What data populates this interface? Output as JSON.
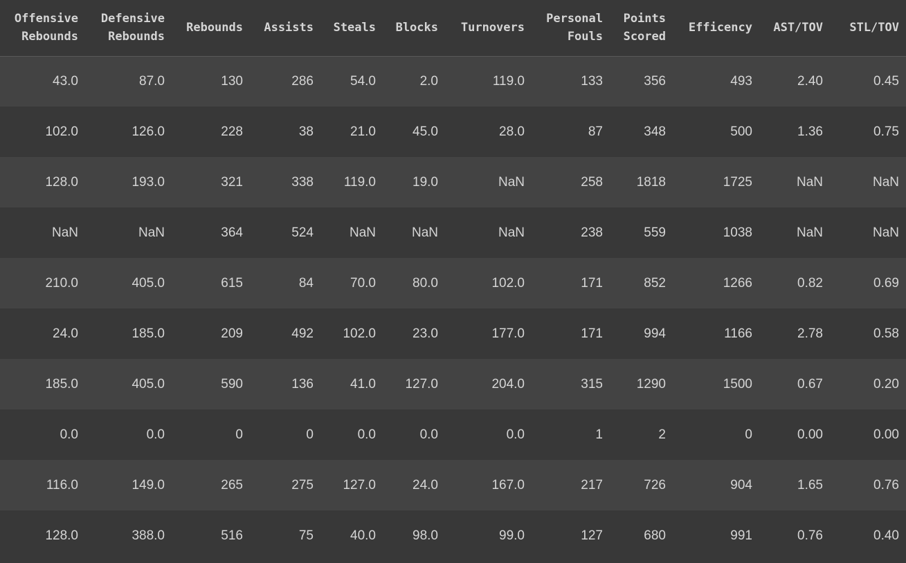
{
  "table": {
    "headers": [
      "Offensive\nRebounds",
      "Defensive\nRebounds",
      "Rebounds",
      "Assists",
      "Steals",
      "Blocks",
      "Turnovers",
      "Personal\nFouls",
      "Points\nScored",
      "Efficency",
      "AST/TOV",
      "STL/TOV"
    ],
    "rows": [
      [
        "43.0",
        "87.0",
        "130",
        "286",
        "54.0",
        "2.0",
        "119.0",
        "133",
        "356",
        "493",
        "2.40",
        "0.45"
      ],
      [
        "102.0",
        "126.0",
        "228",
        "38",
        "21.0",
        "45.0",
        "28.0",
        "87",
        "348",
        "500",
        "1.36",
        "0.75"
      ],
      [
        "128.0",
        "193.0",
        "321",
        "338",
        "119.0",
        "19.0",
        "NaN",
        "258",
        "1818",
        "1725",
        "NaN",
        "NaN"
      ],
      [
        "NaN",
        "NaN",
        "364",
        "524",
        "NaN",
        "NaN",
        "NaN",
        "238",
        "559",
        "1038",
        "NaN",
        "NaN"
      ],
      [
        "210.0",
        "405.0",
        "615",
        "84",
        "70.0",
        "80.0",
        "102.0",
        "171",
        "852",
        "1266",
        "0.82",
        "0.69"
      ],
      [
        "24.0",
        "185.0",
        "209",
        "492",
        "102.0",
        "23.0",
        "177.0",
        "171",
        "994",
        "1166",
        "2.78",
        "0.58"
      ],
      [
        "185.0",
        "405.0",
        "590",
        "136",
        "41.0",
        "127.0",
        "204.0",
        "315",
        "1290",
        "1500",
        "0.67",
        "0.20"
      ],
      [
        "0.0",
        "0.0",
        "0",
        "0",
        "0.0",
        "0.0",
        "0.0",
        "1",
        "2",
        "0",
        "0.00",
        "0.00"
      ],
      [
        "116.0",
        "149.0",
        "265",
        "275",
        "127.0",
        "24.0",
        "167.0",
        "217",
        "726",
        "904",
        "1.65",
        "0.76"
      ],
      [
        "128.0",
        "388.0",
        "516",
        "75",
        "40.0",
        "98.0",
        "99.0",
        "127",
        "680",
        "991",
        "0.76",
        "0.40"
      ]
    ]
  }
}
